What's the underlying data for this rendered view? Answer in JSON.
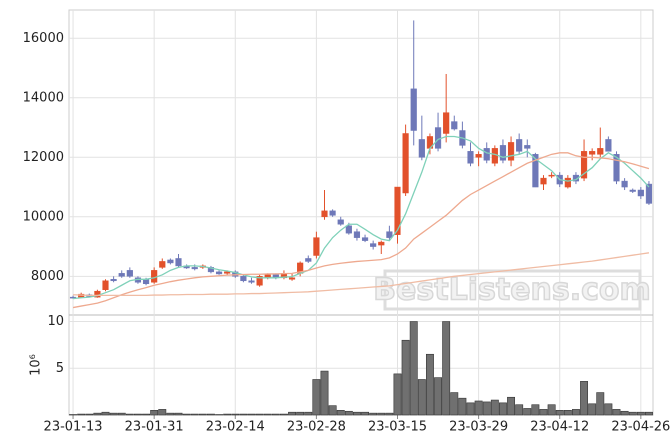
{
  "chart_data": [
    {
      "type": "candlestick",
      "watermark": "BestListens.com",
      "categories": [
        "23-01-13",
        null,
        null,
        null,
        null,
        null,
        null,
        null,
        null,
        null,
        "23-01-31",
        null,
        null,
        null,
        null,
        null,
        null,
        null,
        null,
        null,
        "23-02-14",
        null,
        null,
        null,
        null,
        null,
        null,
        null,
        null,
        null,
        "23-02-28",
        null,
        null,
        null,
        null,
        null,
        null,
        null,
        null,
        null,
        "23-03-15",
        null,
        null,
        null,
        null,
        null,
        null,
        null,
        null,
        null,
        "23-03-29",
        null,
        null,
        null,
        null,
        null,
        null,
        null,
        null,
        null,
        "23-04-12",
        null,
        null,
        null,
        null,
        null,
        null,
        null,
        null,
        null,
        "23-04-26",
        null
      ],
      "open": [
        7300,
        7300,
        7380,
        7300,
        7550,
        7900,
        8100,
        8200,
        7950,
        7900,
        7800,
        8300,
        8550,
        8600,
        8350,
        8300,
        8300,
        8300,
        8150,
        8100,
        8150,
        8000,
        7850,
        7700,
        7950,
        8050,
        7950,
        7900,
        8100,
        8600,
        8700,
        10000,
        10200,
        9900,
        9700,
        9500,
        9300,
        9100,
        9050,
        9500,
        9400,
        10800,
        14300,
        12600,
        12300,
        13000,
        12800,
        13200,
        12900,
        12200,
        12000,
        12300,
        11800,
        12400,
        11900,
        12600,
        12400,
        12100,
        11100,
        11400,
        11400,
        11000,
        11400,
        11300,
        12100,
        12100,
        12600,
        12100,
        11200,
        10900,
        10900,
        11100
      ],
      "high": [
        7350,
        7450,
        7420,
        7550,
        7900,
        8000,
        8200,
        8300,
        8000,
        7950,
        8300,
        8600,
        8600,
        8750,
        8400,
        8400,
        8400,
        8350,
        8200,
        8200,
        8200,
        8050,
        7950,
        8050,
        8100,
        8100,
        8200,
        8100,
        8500,
        8700,
        9500,
        10900,
        10250,
        10000,
        9800,
        9600,
        9400,
        9200,
        9200,
        9700,
        11000,
        13100,
        16600,
        13400,
        12800,
        13500,
        14800,
        13400,
        13200,
        12500,
        12200,
        12500,
        12400,
        12600,
        12700,
        12800,
        12600,
        12150,
        11400,
        11500,
        11500,
        11400,
        11500,
        12600,
        12300,
        13000,
        12700,
        12200,
        11300,
        10950,
        11000,
        11200
      ],
      "low": [
        7250,
        7280,
        7300,
        7280,
        7500,
        7800,
        7950,
        7950,
        7750,
        7700,
        7750,
        8250,
        8400,
        8300,
        8250,
        8200,
        8250,
        8100,
        8050,
        8050,
        7950,
        7800,
        7750,
        7650,
        7900,
        7900,
        7900,
        7850,
        8000,
        8450,
        8600,
        9900,
        10000,
        9700,
        9400,
        9200,
        9150,
        8900,
        8750,
        9200,
        9100,
        10700,
        12400,
        11900,
        12100,
        12200,
        12500,
        12900,
        12300,
        11700,
        11700,
        11800,
        11700,
        11800,
        11700,
        12100,
        12000,
        11000,
        10900,
        11300,
        11000,
        10950,
        11100,
        11200,
        11900,
        12000,
        12200,
        11100,
        10900,
        10800,
        10600,
        10400
      ],
      "close": [
        7280,
        7400,
        7330,
        7500,
        7850,
        7850,
        8000,
        8000,
        7800,
        7750,
        8200,
        8500,
        8450,
        8350,
        8280,
        8250,
        8350,
        8150,
        8080,
        8150,
        8000,
        7850,
        7800,
        8000,
        8050,
        7950,
        8100,
        7950,
        8450,
        8500,
        9300,
        10200,
        10050,
        9750,
        9450,
        9300,
        9200,
        9000,
        9150,
        9300,
        11000,
        12800,
        12900,
        12000,
        12700,
        12300,
        13500,
        12950,
        12400,
        11800,
        12100,
        11900,
        12300,
        11900,
        12500,
        12200,
        12300,
        11000,
        11300,
        11400,
        11100,
        11300,
        11200,
        12200,
        12200,
        12300,
        12200,
        11200,
        11000,
        10850,
        10700,
        10450
      ],
      "up_color": "#e2512b",
      "down_color": "#6e78b8",
      "series": [
        {
          "color": "#7fd1b9",
          "values": [
            7250,
            7280,
            7300,
            7350,
            7450,
            7550,
            7700,
            7850,
            7900,
            7900,
            7950,
            8050,
            8200,
            8300,
            8350,
            8350,
            8330,
            8280,
            8220,
            8180,
            8130,
            8050,
            7980,
            7950,
            7950,
            7950,
            7970,
            7990,
            8100,
            8200,
            8450,
            8950,
            9300,
            9550,
            9750,
            9750,
            9580,
            9400,
            9250,
            9200,
            9550,
            10100,
            10800,
            11500,
            12300,
            12600,
            12700,
            12700,
            12650,
            12550,
            12300,
            12150,
            12100,
            12000,
            12050,
            12100,
            12200,
            11950,
            11750,
            11550,
            11250,
            11200,
            11250,
            11450,
            11650,
            11950,
            12150,
            12000,
            11800,
            11550,
            11300,
            11000
          ]
        },
        {
          "color": "#eea98f",
          "values": [
            6950,
            7000,
            7050,
            7100,
            7180,
            7280,
            7380,
            7470,
            7550,
            7620,
            7700,
            7760,
            7820,
            7870,
            7910,
            7950,
            7980,
            8000,
            8020,
            8040,
            8050,
            8060,
            8070,
            8070,
            8080,
            8080,
            8090,
            8100,
            8150,
            8200,
            8280,
            8350,
            8400,
            8440,
            8470,
            8500,
            8520,
            8540,
            8560,
            8620,
            8750,
            8950,
            9250,
            9450,
            9650,
            9850,
            10050,
            10300,
            10550,
            10750,
            10900,
            11050,
            11200,
            11350,
            11500,
            11650,
            11800,
            11900,
            12000,
            12100,
            12150,
            12150,
            12050,
            12000,
            12000,
            11980,
            11950,
            11900,
            11850,
            11780,
            11700,
            11620
          ]
        },
        {
          "color": "#f0bca4",
          "values": [
            7380,
            7370,
            7360,
            7360,
            7360,
            7360,
            7360,
            7360,
            7360,
            7360,
            7370,
            7370,
            7380,
            7380,
            7390,
            7390,
            7390,
            7400,
            7400,
            7400,
            7410,
            7410,
            7420,
            7420,
            7430,
            7440,
            7450,
            7460,
            7470,
            7480,
            7500,
            7520,
            7540,
            7560,
            7580,
            7600,
            7620,
            7640,
            7660,
            7680,
            7720,
            7760,
            7800,
            7840,
            7880,
            7920,
            7960,
            8000,
            8030,
            8060,
            8090,
            8120,
            8150,
            8180,
            8210,
            8240,
            8270,
            8300,
            8330,
            8360,
            8390,
            8420,
            8450,
            8480,
            8510,
            8550,
            8590,
            8630,
            8670,
            8710,
            8750,
            8790
          ]
        }
      ],
      "ylim": [
        6700,
        16950
      ],
      "yticks": [
        8000,
        10000,
        12000,
        14000,
        16000
      ],
      "grid": true
    },
    {
      "type": "bar",
      "ylabel": "10⁶",
      "color": "#707070",
      "values": [
        0.05,
        0.1,
        0.1,
        0.2,
        0.3,
        0.2,
        0.2,
        0.1,
        0.1,
        0.1,
        0.5,
        0.6,
        0.2,
        0.2,
        0.1,
        0.1,
        0.1,
        0.1,
        0.05,
        0.1,
        0.1,
        0.1,
        0.1,
        0.1,
        0.1,
        0.1,
        0.1,
        0.3,
        0.3,
        0.3,
        3.8,
        4.7,
        1.0,
        0.5,
        0.4,
        0.3,
        0.3,
        0.2,
        0.2,
        0.2,
        4.4,
        8.0,
        10.0,
        3.8,
        6.5,
        4.0,
        10.0,
        2.4,
        1.8,
        1.3,
        1.5,
        1.4,
        1.6,
        1.3,
        1.9,
        1.1,
        0.7,
        1.1,
        0.6,
        1.1,
        0.5,
        0.5,
        0.6,
        3.6,
        1.2,
        2.4,
        1.2,
        0.6,
        0.4,
        0.3,
        0.3,
        0.3
      ],
      "ylim": [
        0,
        10.7
      ],
      "yticks": [
        5,
        10
      ],
      "grid": true
    }
  ]
}
